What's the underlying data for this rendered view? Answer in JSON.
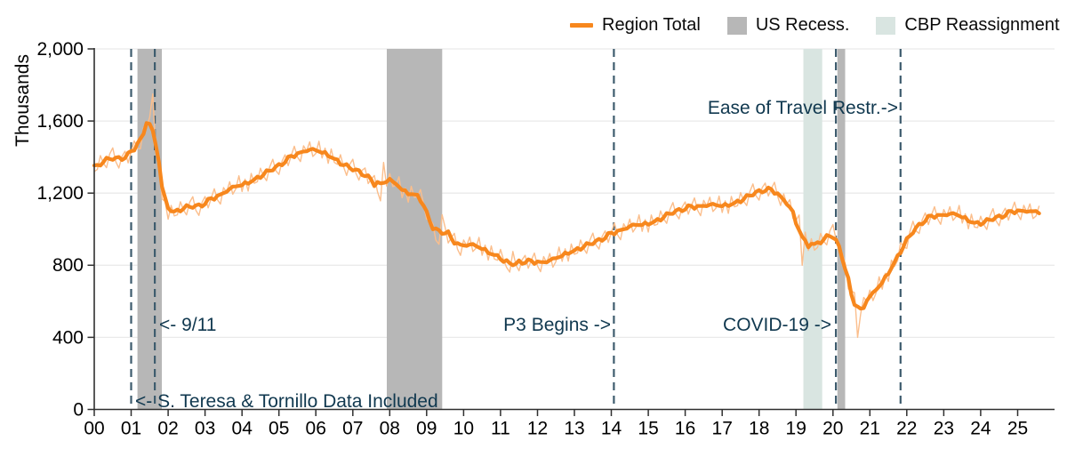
{
  "colors": {
    "trend": "#F7871D",
    "raw": "#FBBE8C",
    "recession": "#B7B7B7",
    "cbp": "#D9E5E1",
    "event_line": "#3E5C6E",
    "annotation": "#10384F",
    "grid": "#EAEAEA",
    "axis": "#2F2F2F",
    "tick_label": "#000000"
  },
  "chart_data": {
    "type": "line",
    "title": "",
    "ylabel": "Thousands",
    "xlabel": "",
    "xlim": [
      2000,
      2026
    ],
    "ylim": [
      0,
      2000
    ],
    "grid": "horizontal",
    "legend_position": "top",
    "x_ticks": [
      {
        "year": 2000,
        "label": "00"
      },
      {
        "year": 2001,
        "label": "01"
      },
      {
        "year": 2002,
        "label": "02"
      },
      {
        "year": 2003,
        "label": "03"
      },
      {
        "year": 2004,
        "label": "04"
      },
      {
        "year": 2005,
        "label": "05"
      },
      {
        "year": 2006,
        "label": "06"
      },
      {
        "year": 2007,
        "label": "07"
      },
      {
        "year": 2008,
        "label": "08"
      },
      {
        "year": 2009,
        "label": "09"
      },
      {
        "year": 2010,
        "label": "10"
      },
      {
        "year": 2011,
        "label": "11"
      },
      {
        "year": 2012,
        "label": "12"
      },
      {
        "year": 2013,
        "label": "13"
      },
      {
        "year": 2014,
        "label": "14"
      },
      {
        "year": 2015,
        "label": "15"
      },
      {
        "year": 2016,
        "label": "16"
      },
      {
        "year": 2017,
        "label": "17"
      },
      {
        "year": 2018,
        "label": "18"
      },
      {
        "year": 2019,
        "label": "19"
      },
      {
        "year": 2020,
        "label": "20"
      },
      {
        "year": 2021,
        "label": "21"
      },
      {
        "year": 2022,
        "label": "22"
      },
      {
        "year": 2023,
        "label": "23"
      },
      {
        "year": 2024,
        "label": "24"
      },
      {
        "year": 2025,
        "label": "25"
      }
    ],
    "y_ticks": [
      {
        "value": 0,
        "label": "0"
      },
      {
        "value": 400,
        "label": "400"
      },
      {
        "value": 800,
        "label": "800"
      },
      {
        "value": 1200,
        "label": "1,200"
      },
      {
        "value": 1600,
        "label": "1,600"
      },
      {
        "value": 2000,
        "label": "2,000"
      }
    ],
    "legend": [
      {
        "label": "Region Total",
        "swatch": "line",
        "color": "#F7871D"
      },
      {
        "label": "US Recess.",
        "swatch": "box",
        "color": "#B7B7B7"
      },
      {
        "label": "CBP Reassignment",
        "swatch": "box",
        "color": "#D9E5E1"
      }
    ],
    "bands": [
      {
        "label": "US Recess.",
        "kind": "recession",
        "x0": 2001.17,
        "x1": 2001.83
      },
      {
        "label": "US Recess.",
        "kind": "recession",
        "x0": 2007.92,
        "x1": 2009.42
      },
      {
        "label": "CBP Reassignment",
        "kind": "cbp",
        "x0": 2019.2,
        "x1": 2019.71
      },
      {
        "label": "US Recess.",
        "kind": "recession",
        "x0": 2020.12,
        "x1": 2020.33
      }
    ],
    "events": [
      {
        "id": "s-teresa",
        "label": "S. Teresa & Tornillo Data Included",
        "x": 2001.0
      },
      {
        "id": "nine-eleven",
        "label": "9/11",
        "x": 2001.64
      },
      {
        "id": "p3-begins",
        "label": "P3 Begins",
        "x": 2014.07
      },
      {
        "id": "covid-19",
        "label": "COVID-19",
        "x": 2020.08
      },
      {
        "id": "ease-travel",
        "label": "Ease of Travel Restr.",
        "x": 2021.83
      }
    ],
    "annotations": [
      {
        "id": "s-teresa",
        "text": "<- S. Teresa & Tornillo Data Included",
        "at_year": 2001.0,
        "align": "left"
      },
      {
        "id": "nine-eleven",
        "text": "<- 9/11",
        "at_year": 2001.64,
        "align": "left"
      },
      {
        "id": "p3",
        "text": "P3 Begins ->",
        "at_year": 2014.07,
        "align": "right"
      },
      {
        "id": "covid",
        "text": "COVID-19 ->",
        "at_year": 2020.08,
        "align": "right"
      },
      {
        "id": "ease",
        "text": "Ease of Travel Restr.->",
        "at_year": 2021.83,
        "align": "right"
      }
    ],
    "series": [
      {
        "name": "Region Total (smoothed trend, thousands)",
        "style": "trend",
        "anchors": [
          [
            2000.0,
            1350
          ],
          [
            2000.2,
            1372
          ],
          [
            2000.45,
            1398
          ],
          [
            2000.7,
            1388
          ],
          [
            2000.9,
            1402
          ],
          [
            2001.1,
            1445
          ],
          [
            2001.3,
            1520
          ],
          [
            2001.45,
            1585
          ],
          [
            2001.58,
            1560
          ],
          [
            2001.72,
            1360
          ],
          [
            2001.88,
            1150
          ],
          [
            2002.05,
            1098
          ],
          [
            2002.3,
            1110
          ],
          [
            2002.55,
            1128
          ],
          [
            2002.8,
            1122
          ],
          [
            2003.05,
            1152
          ],
          [
            2003.3,
            1182
          ],
          [
            2003.55,
            1208
          ],
          [
            2003.8,
            1232
          ],
          [
            2004.05,
            1258
          ],
          [
            2004.3,
            1282
          ],
          [
            2004.55,
            1302
          ],
          [
            2004.8,
            1328
          ],
          [
            2005.05,
            1360
          ],
          [
            2005.3,
            1398
          ],
          [
            2005.55,
            1428
          ],
          [
            2005.8,
            1442
          ],
          [
            2006.0,
            1432
          ],
          [
            2006.2,
            1440
          ],
          [
            2006.4,
            1415
          ],
          [
            2006.6,
            1385
          ],
          [
            2006.85,
            1340
          ],
          [
            2007.1,
            1328
          ],
          [
            2007.3,
            1310
          ],
          [
            2007.45,
            1285
          ],
          [
            2007.6,
            1245
          ],
          [
            2007.75,
            1212
          ],
          [
            2007.9,
            1242
          ],
          [
            2008.05,
            1275
          ],
          [
            2008.2,
            1250
          ],
          [
            2008.35,
            1215
          ],
          [
            2008.55,
            1205
          ],
          [
            2008.75,
            1208
          ],
          [
            2008.95,
            1140
          ],
          [
            2009.1,
            1020
          ],
          [
            2009.2,
            952
          ],
          [
            2009.35,
            968
          ],
          [
            2009.5,
            975
          ],
          [
            2009.65,
            950
          ],
          [
            2009.85,
            908
          ],
          [
            2010.1,
            915
          ],
          [
            2010.35,
            905
          ],
          [
            2010.6,
            895
          ],
          [
            2010.85,
            862
          ],
          [
            2011.1,
            838
          ],
          [
            2011.3,
            822
          ],
          [
            2011.55,
            818
          ],
          [
            2011.8,
            822
          ],
          [
            2012.0,
            818
          ],
          [
            2012.2,
            820
          ],
          [
            2012.45,
            822
          ],
          [
            2012.7,
            872
          ],
          [
            2012.95,
            888
          ],
          [
            2013.2,
            902
          ],
          [
            2013.45,
            918
          ],
          [
            2013.65,
            938
          ],
          [
            2013.9,
            962
          ],
          [
            2014.07,
            985
          ],
          [
            2014.3,
            1000
          ],
          [
            2014.55,
            1015
          ],
          [
            2014.8,
            1030
          ],
          [
            2015.05,
            1045
          ],
          [
            2015.3,
            1058
          ],
          [
            2015.55,
            1082
          ],
          [
            2015.8,
            1105
          ],
          [
            2016.1,
            1122
          ],
          [
            2016.35,
            1128
          ],
          [
            2016.6,
            1135
          ],
          [
            2016.85,
            1128
          ],
          [
            2017.1,
            1142
          ],
          [
            2017.35,
            1155
          ],
          [
            2017.6,
            1168
          ],
          [
            2017.85,
            1198
          ],
          [
            2018.1,
            1220
          ],
          [
            2018.3,
            1222
          ],
          [
            2018.5,
            1205
          ],
          [
            2018.7,
            1160
          ],
          [
            2018.9,
            1100
          ],
          [
            2019.1,
            1020
          ],
          [
            2019.3,
            950
          ],
          [
            2019.45,
            905
          ],
          [
            2019.6,
            930
          ],
          [
            2019.75,
            945
          ],
          [
            2019.9,
            968
          ],
          [
            2020.05,
            972
          ],
          [
            2020.18,
            930
          ],
          [
            2020.3,
            800
          ],
          [
            2020.45,
            680
          ],
          [
            2020.6,
            590
          ],
          [
            2020.72,
            580
          ],
          [
            2020.85,
            595
          ],
          [
            2021.0,
            618
          ],
          [
            2021.15,
            652
          ],
          [
            2021.3,
            700
          ],
          [
            2021.5,
            768
          ],
          [
            2021.7,
            835
          ],
          [
            2021.85,
            892
          ],
          [
            2022.0,
            938
          ],
          [
            2022.15,
            985
          ],
          [
            2022.3,
            1020
          ],
          [
            2022.5,
            1055
          ],
          [
            2022.7,
            1075
          ],
          [
            2022.9,
            1082
          ],
          [
            2023.1,
            1080
          ],
          [
            2023.3,
            1082
          ],
          [
            2023.5,
            1078
          ],
          [
            2023.65,
            1062
          ],
          [
            2023.85,
            1040
          ],
          [
            2024.0,
            1032
          ],
          [
            2024.15,
            1042
          ],
          [
            2024.35,
            1060
          ],
          [
            2024.55,
            1072
          ],
          [
            2024.75,
            1088
          ],
          [
            2024.95,
            1105
          ],
          [
            2025.1,
            1108
          ],
          [
            2025.3,
            1098
          ],
          [
            2025.45,
            1090
          ],
          [
            2025.58,
            1078
          ]
        ]
      },
      {
        "name": "Region Total (monthly, thousands)",
        "style": "raw",
        "derivation": "trend anchors + monthly noise pattern, with override spikes",
        "start_year": 2000,
        "months": 308,
        "noise_pattern": [
          -30,
          -28,
          40,
          -12,
          -45,
          22,
          55,
          -18,
          -50,
          12,
          35,
          -38,
          6,
          48,
          -22,
          -55,
          28,
          -6,
          44,
          -33,
          -12,
          52,
          -44,
          16,
          -58,
          32
        ],
        "noise_overrides": {
          "19": 1750,
          "94": 1370,
          "113": 1080,
          "135": 762,
          "230": 800,
          "248": 400
        }
      }
    ]
  }
}
